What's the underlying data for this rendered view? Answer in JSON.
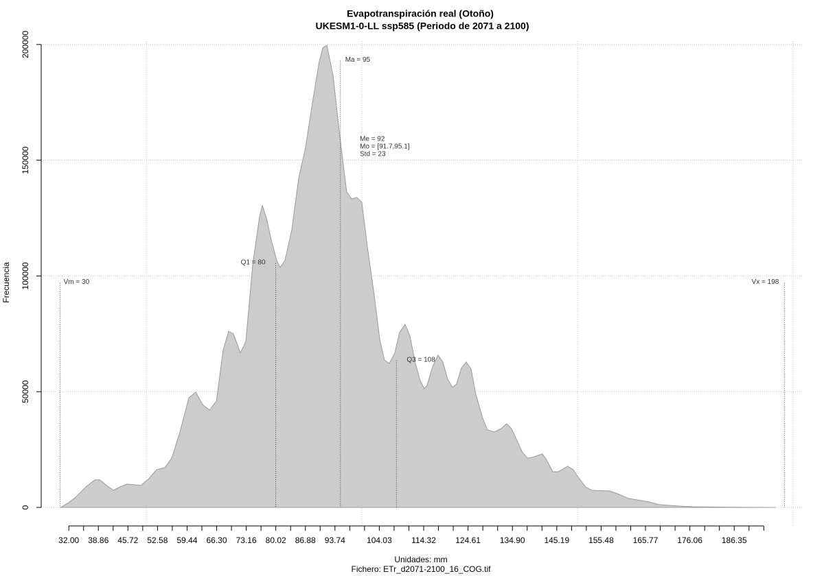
{
  "chart_data": {
    "type": "area",
    "title": "Evapotranspiración real (Otoño)",
    "subtitle": "UKESM1-0-LL ssp585 (Periodo de 2071 a 2100)",
    "xlabel": "Unidades: mm",
    "caption": "Fichero: ETr_d2071-2100_16_COG.tif",
    "ylabel": "Frecuencia",
    "color": "#cccccc",
    "line_color": "#9a9a9a",
    "x": [
      30.09,
      32,
      33.59,
      35.98,
      38.05,
      39.16,
      40.76,
      42.35,
      43.94,
      45.53,
      48.72,
      50.31,
      52.38,
      54.29,
      55.88,
      57.79,
      59.86,
      61.45,
      63.04,
      64.64,
      66.23,
      67.82,
      69.09,
      70.2,
      71.8,
      73.07,
      74.67,
      76.26,
      76.89,
      77.85,
      78.96,
      80.24,
      81.03,
      82.15,
      83.74,
      85.33,
      86.92,
      88.51,
      90.1,
      90.9,
      91.86,
      93.29,
      94.88,
      96.47,
      97.59,
      98.86,
      99.97,
      101.25,
      102.84,
      104.12,
      105.23,
      106.35,
      107.62,
      108.73,
      110.01,
      111.12,
      112.4,
      113.51,
      114.47,
      115.1,
      116.38,
      117.65,
      118.76,
      119.88,
      120.99,
      121.95,
      123.06,
      124.18,
      125.29,
      126.4,
      128,
      129.11,
      130.7,
      132.3,
      133.57,
      134.68,
      135.8,
      137.07,
      138.35,
      139.46,
      141.85,
      142.96,
      144.24,
      145.51,
      147.74,
      149.01,
      150.29,
      151.88,
      153.31,
      157.45,
      159.36,
      161.75,
      166.52,
      168.91,
      173.69,
      176.87,
      187.22,
      195.97
    ],
    "y": [
      0,
      2100,
      4400,
      8900,
      11900,
      11900,
      9500,
      7400,
      8900,
      10100,
      9500,
      11900,
      16300,
      17200,
      21300,
      32600,
      47400,
      49800,
      44400,
      42100,
      45900,
      68100,
      76100,
      75000,
      66700,
      71700,
      105200,
      125900,
      130400,
      125000,
      115600,
      106700,
      103700,
      106700,
      120000,
      142200,
      155600,
      174800,
      192600,
      198500,
      199700,
      186700,
      160000,
      136300,
      133300,
      133900,
      131900,
      112600,
      91900,
      72600,
      63700,
      62200,
      66700,
      75600,
      79100,
      74100,
      62200,
      54800,
      51300,
      52700,
      60700,
      65800,
      62800,
      55400,
      51900,
      53300,
      60200,
      62800,
      59900,
      48900,
      38500,
      33500,
      32600,
      34100,
      36100,
      34100,
      29600,
      24300,
      21300,
      21600,
      23100,
      20100,
      15400,
      15400,
      17800,
      16300,
      12700,
      8900,
      7400,
      7100,
      5900,
      3900,
      2400,
      1200,
      600,
      300,
      100,
      0
    ],
    "xlim": [
      25.6,
      202.4
    ],
    "ylim": [
      -8000,
      205000
    ],
    "yticks": [
      0,
      50000,
      100000,
      150000,
      200000
    ],
    "xticks": [
      {
        "value": 32,
        "label": "32.00"
      },
      {
        "value": 38.86,
        "label": "38.86"
      },
      {
        "value": 45.72,
        "label": "45.72"
      },
      {
        "value": 52.58,
        "label": "52.58"
      },
      {
        "value": 59.44,
        "label": "59.44"
      },
      {
        "value": 66.3,
        "label": "66.30"
      },
      {
        "value": 73.16,
        "label": "73.16"
      },
      {
        "value": 80.02,
        "label": "80.02"
      },
      {
        "value": 86.88,
        "label": "86.88"
      },
      {
        "value": 93.74,
        "label": "93.74"
      },
      {
        "value": 104.03,
        "label": "104.03"
      },
      {
        "value": 114.32,
        "label": "114.32"
      },
      {
        "value": 124.61,
        "label": "124.61"
      },
      {
        "value": 134.9,
        "label": "134.90"
      },
      {
        "value": 145.19,
        "label": "145.19"
      },
      {
        "value": 155.48,
        "label": "155.48"
      },
      {
        "value": 165.77,
        "label": "165.77"
      },
      {
        "value": 176.06,
        "label": "176.06"
      },
      {
        "value": 186.35,
        "label": "186.35"
      }
    ],
    "xminorticks": [
      35.43,
      42.29,
      49.15,
      56.01,
      62.87,
      69.73,
      76.59,
      83.45,
      90.31,
      97.17,
      100.6,
      107.46,
      110.89,
      117.75,
      121.18,
      128.04,
      131.47,
      138.33,
      141.76,
      148.62,
      152.05,
      158.91,
      162.34,
      169.2,
      172.63,
      179.49,
      182.92,
      189.78,
      193.21
    ],
    "xgrid": [
      50,
      100,
      150,
      200
    ],
    "grid": true,
    "annotations": [
      {
        "label": "Vm = 30",
        "x": 30
      },
      {
        "label": "Q1 = 80",
        "x": 80
      },
      {
        "label": "Ma = 95",
        "x": 95
      },
      {
        "label": "Q3 = 108",
        "x": 108
      },
      {
        "label": "Vx = 198",
        "x": 198
      }
    ],
    "stats": [
      "Me = 92",
      "Mo = [91.7,95.1]",
      "Std = 23"
    ]
  }
}
